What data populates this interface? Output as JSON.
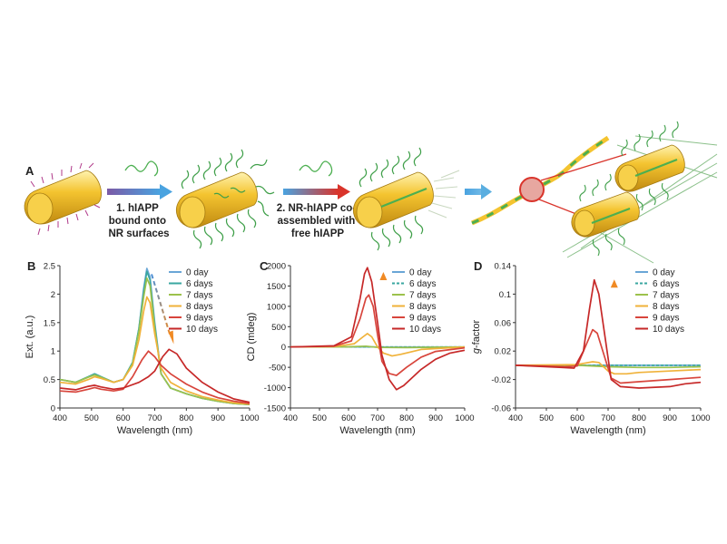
{
  "colors": {
    "day0": "#6aa6d6",
    "day6": "#3aa7a0",
    "day7": "#9cc24c",
    "day8": "#f0b23a",
    "day9": "#d8453c",
    "day10": "#c62828",
    "rod": "#f4c430",
    "peptide": "#4caf50",
    "arrow_orange": "#f08a24",
    "arrow_blue": "#4a90d9",
    "arrow_red": "#d9342b"
  },
  "panel_a": {
    "letter": "A",
    "step1": [
      "1. hIAPP",
      "bound onto",
      "NR surfaces"
    ],
    "step2": [
      "2. NR-hIAPP co-",
      "assembled with",
      "free hIAPP"
    ]
  },
  "chart_data": [
    {
      "panel": "B",
      "type": "line",
      "xlabel": "Wavelength (nm)",
      "ylabel": "Ext. (a.u.)",
      "xlim": [
        400,
        1000
      ],
      "ylim": [
        0,
        2.5
      ],
      "xticks": [
        "400",
        "500",
        "600",
        "700",
        "800",
        "900",
        "1000"
      ],
      "yticks": [
        "0",
        "0.5",
        "1",
        "1.5",
        "2",
        "2.5"
      ],
      "legend": "top-right",
      "series": [
        {
          "name": "0 day",
          "color": "#6aa6d6",
          "dashed": false,
          "points": [
            [
              400,
              0.5
            ],
            [
              450,
              0.45
            ],
            [
              490,
              0.55
            ],
            [
              510,
              0.6
            ],
            [
              530,
              0.55
            ],
            [
              570,
              0.45
            ],
            [
              600,
              0.5
            ],
            [
              630,
              0.8
            ],
            [
              650,
              1.4
            ],
            [
              665,
              2.1
            ],
            [
              675,
              2.45
            ],
            [
              685,
              2.3
            ],
            [
              700,
              1.5
            ],
            [
              720,
              0.6
            ],
            [
              750,
              0.35
            ],
            [
              800,
              0.25
            ],
            [
              850,
              0.17
            ],
            [
              900,
              0.12
            ],
            [
              950,
              0.08
            ],
            [
              1000,
              0.06
            ]
          ]
        },
        {
          "name": "6 days",
          "color": "#3aa7a0",
          "dashed": false,
          "points": [
            [
              400,
              0.5
            ],
            [
              450,
              0.45
            ],
            [
              490,
              0.55
            ],
            [
              510,
              0.6
            ],
            [
              530,
              0.55
            ],
            [
              570,
              0.45
            ],
            [
              600,
              0.5
            ],
            [
              630,
              0.8
            ],
            [
              650,
              1.4
            ],
            [
              665,
              2.05
            ],
            [
              675,
              2.4
            ],
            [
              685,
              2.25
            ],
            [
              700,
              1.45
            ],
            [
              720,
              0.6
            ],
            [
              750,
              0.35
            ],
            [
              800,
              0.25
            ],
            [
              850,
              0.17
            ],
            [
              900,
              0.12
            ],
            [
              950,
              0.08
            ],
            [
              1000,
              0.06
            ]
          ]
        },
        {
          "name": "7 days",
          "color": "#9cc24c",
          "dashed": false,
          "points": [
            [
              400,
              0.5
            ],
            [
              450,
              0.45
            ],
            [
              490,
              0.54
            ],
            [
              510,
              0.58
            ],
            [
              530,
              0.54
            ],
            [
              570,
              0.45
            ],
            [
              600,
              0.5
            ],
            [
              630,
              0.78
            ],
            [
              650,
              1.35
            ],
            [
              665,
              1.95
            ],
            [
              675,
              2.28
            ],
            [
              685,
              2.15
            ],
            [
              700,
              1.4
            ],
            [
              720,
              0.6
            ],
            [
              750,
              0.35
            ],
            [
              800,
              0.25
            ],
            [
              850,
              0.17
            ],
            [
              900,
              0.12
            ],
            [
              950,
              0.08
            ],
            [
              1000,
              0.06
            ]
          ]
        },
        {
          "name": "8 days",
          "color": "#f0b23a",
          "dashed": false,
          "points": [
            [
              400,
              0.45
            ],
            [
              450,
              0.42
            ],
            [
              490,
              0.5
            ],
            [
              510,
              0.55
            ],
            [
              530,
              0.52
            ],
            [
              570,
              0.45
            ],
            [
              600,
              0.5
            ],
            [
              630,
              0.75
            ],
            [
              650,
              1.2
            ],
            [
              665,
              1.7
            ],
            [
              675,
              1.95
            ],
            [
              685,
              1.85
            ],
            [
              700,
              1.3
            ],
            [
              720,
              0.7
            ],
            [
              750,
              0.45
            ],
            [
              800,
              0.3
            ],
            [
              850,
              0.2
            ],
            [
              900,
              0.14
            ],
            [
              950,
              0.09
            ],
            [
              1000,
              0.07
            ]
          ]
        },
        {
          "name": "9 days",
          "color": "#d8453c",
          "dashed": false,
          "points": [
            [
              400,
              0.3
            ],
            [
              450,
              0.28
            ],
            [
              490,
              0.33
            ],
            [
              510,
              0.36
            ],
            [
              530,
              0.33
            ],
            [
              570,
              0.3
            ],
            [
              600,
              0.33
            ],
            [
              630,
              0.55
            ],
            [
              660,
              0.85
            ],
            [
              680,
              1.0
            ],
            [
              700,
              0.9
            ],
            [
              720,
              0.75
            ],
            [
              750,
              0.6
            ],
            [
              800,
              0.42
            ],
            [
              850,
              0.28
            ],
            [
              900,
              0.18
            ],
            [
              950,
              0.12
            ],
            [
              1000,
              0.08
            ]
          ]
        },
        {
          "name": "10 days",
          "color": "#c62828",
          "dashed": false,
          "points": [
            [
              400,
              0.35
            ],
            [
              450,
              0.32
            ],
            [
              490,
              0.38
            ],
            [
              510,
              0.4
            ],
            [
              530,
              0.37
            ],
            [
              570,
              0.33
            ],
            [
              600,
              0.35
            ],
            [
              650,
              0.45
            ],
            [
              680,
              0.55
            ],
            [
              700,
              0.65
            ],
            [
              725,
              0.9
            ],
            [
              745,
              1.03
            ],
            [
              770,
              0.95
            ],
            [
              800,
              0.7
            ],
            [
              850,
              0.45
            ],
            [
              900,
              0.28
            ],
            [
              950,
              0.16
            ],
            [
              1000,
              0.1
            ]
          ]
        }
      ]
    },
    {
      "panel": "C",
      "type": "line",
      "xlabel": "Wavelength (nm)",
      "ylabel": "CD (mdeg)",
      "xlim": [
        400,
        1000
      ],
      "ylim": [
        -1500,
        2000
      ],
      "xticks": [
        "400",
        "500",
        "600",
        "700",
        "800",
        "900",
        "1000"
      ],
      "yticks": [
        "-1500",
        "-1000",
        "-500",
        "0",
        "500",
        "1000",
        "1500",
        "2000"
      ],
      "legend": "top-right",
      "series": [
        {
          "name": "0 day",
          "color": "#6aa6d6",
          "dashed": false,
          "points": [
            [
              400,
              0
            ],
            [
              600,
              0
            ],
            [
              700,
              0
            ],
            [
              800,
              0
            ],
            [
              1000,
              0
            ]
          ]
        },
        {
          "name": "6 days",
          "color": "#3aa7a0",
          "dashed": true,
          "points": [
            [
              400,
              0
            ],
            [
              600,
              0
            ],
            [
              700,
              0
            ],
            [
              800,
              0
            ],
            [
              1000,
              0
            ]
          ]
        },
        {
          "name": "7 days",
          "color": "#9cc24c",
          "dashed": false,
          "points": [
            [
              400,
              0
            ],
            [
              600,
              5
            ],
            [
              660,
              20
            ],
            [
              700,
              -10
            ],
            [
              800,
              -15
            ],
            [
              1000,
              0
            ]
          ]
        },
        {
          "name": "8 days",
          "color": "#f0b23a",
          "dashed": false,
          "points": [
            [
              400,
              0
            ],
            [
              550,
              10
            ],
            [
              620,
              80
            ],
            [
              650,
              250
            ],
            [
              665,
              330
            ],
            [
              680,
              250
            ],
            [
              700,
              0
            ],
            [
              720,
              -150
            ],
            [
              750,
              -220
            ],
            [
              780,
              -180
            ],
            [
              850,
              -60
            ],
            [
              1000,
              0
            ]
          ]
        },
        {
          "name": "9 days",
          "color": "#d8453c",
          "dashed": false,
          "points": [
            [
              400,
              0
            ],
            [
              550,
              20
            ],
            [
              610,
              150
            ],
            [
              640,
              700
            ],
            [
              660,
              1200
            ],
            [
              670,
              1280
            ],
            [
              685,
              1000
            ],
            [
              700,
              300
            ],
            [
              715,
              -350
            ],
            [
              740,
              -650
            ],
            [
              765,
              -700
            ],
            [
              800,
              -500
            ],
            [
              850,
              -250
            ],
            [
              900,
              -110
            ],
            [
              1000,
              -20
            ]
          ]
        },
        {
          "name": "10 days",
          "color": "#c62828",
          "dashed": false,
          "points": [
            [
              400,
              0
            ],
            [
              550,
              30
            ],
            [
              610,
              250
            ],
            [
              640,
              1200
            ],
            [
              655,
              1800
            ],
            [
              665,
              1950
            ],
            [
              680,
              1600
            ],
            [
              700,
              600
            ],
            [
              715,
              -200
            ],
            [
              740,
              -800
            ],
            [
              765,
              -1050
            ],
            [
              790,
              -950
            ],
            [
              850,
              -550
            ],
            [
              900,
              -300
            ],
            [
              950,
              -150
            ],
            [
              1000,
              -80
            ]
          ]
        }
      ]
    },
    {
      "panel": "D",
      "type": "line",
      "xlabel": "Wavelength (nm)",
      "ylabel": "g-factor",
      "xlim": [
        400,
        1000
      ],
      "ylim": [
        -0.06,
        0.14
      ],
      "xticks": [
        "400",
        "500",
        "600",
        "700",
        "800",
        "900",
        "1000"
      ],
      "yticks": [
        "-0.06",
        "-0.02",
        "0.02",
        "0.06",
        "0.1",
        "0.14"
      ],
      "legend": "top-right",
      "series": [
        {
          "name": "0 day",
          "color": "#6aa6d6",
          "dashed": false,
          "points": [
            [
              400,
              0
            ],
            [
              600,
              0
            ],
            [
              800,
              0
            ],
            [
              1000,
              0
            ]
          ]
        },
        {
          "name": "6 days",
          "color": "#3aa7a0",
          "dashed": true,
          "points": [
            [
              400,
              0
            ],
            [
              600,
              0
            ],
            [
              800,
              0
            ],
            [
              1000,
              0
            ]
          ]
        },
        {
          "name": "7 days",
          "color": "#9cc24c",
          "dashed": false,
          "points": [
            [
              400,
              0
            ],
            [
              600,
              0
            ],
            [
              700,
              -0.002
            ],
            [
              800,
              -0.003
            ],
            [
              900,
              -0.003
            ],
            [
              1000,
              -0.002
            ]
          ]
        },
        {
          "name": "8 days",
          "color": "#f0b23a",
          "dashed": false,
          "points": [
            [
              400,
              0
            ],
            [
              600,
              0.001
            ],
            [
              650,
              0.005
            ],
            [
              670,
              0.004
            ],
            [
              700,
              -0.008
            ],
            [
              720,
              -0.012
            ],
            [
              760,
              -0.012
            ],
            [
              800,
              -0.01
            ],
            [
              900,
              -0.008
            ],
            [
              1000,
              -0.006
            ]
          ]
        },
        {
          "name": "9 days",
          "color": "#d8453c",
          "dashed": false,
          "points": [
            [
              400,
              0
            ],
            [
              560,
              -0.002
            ],
            [
              600,
              -0.001
            ],
            [
              630,
              0.03
            ],
            [
              650,
              0.05
            ],
            [
              665,
              0.045
            ],
            [
              690,
              0.01
            ],
            [
              710,
              -0.018
            ],
            [
              740,
              -0.025
            ],
            [
              800,
              -0.023
            ],
            [
              900,
              -0.02
            ],
            [
              1000,
              -0.017
            ]
          ]
        },
        {
          "name": "10 days",
          "color": "#c62828",
          "dashed": false,
          "points": [
            [
              400,
              0
            ],
            [
              550,
              -0.003
            ],
            [
              590,
              -0.004
            ],
            [
              620,
              0.02
            ],
            [
              640,
              0.08
            ],
            [
              655,
              0.12
            ],
            [
              670,
              0.1
            ],
            [
              690,
              0.04
            ],
            [
              710,
              -0.02
            ],
            [
              740,
              -0.03
            ],
            [
              800,
              -0.032
            ],
            [
              900,
              -0.03
            ],
            [
              950,
              -0.026
            ],
            [
              1000,
              -0.024
            ]
          ]
        }
      ]
    }
  ]
}
